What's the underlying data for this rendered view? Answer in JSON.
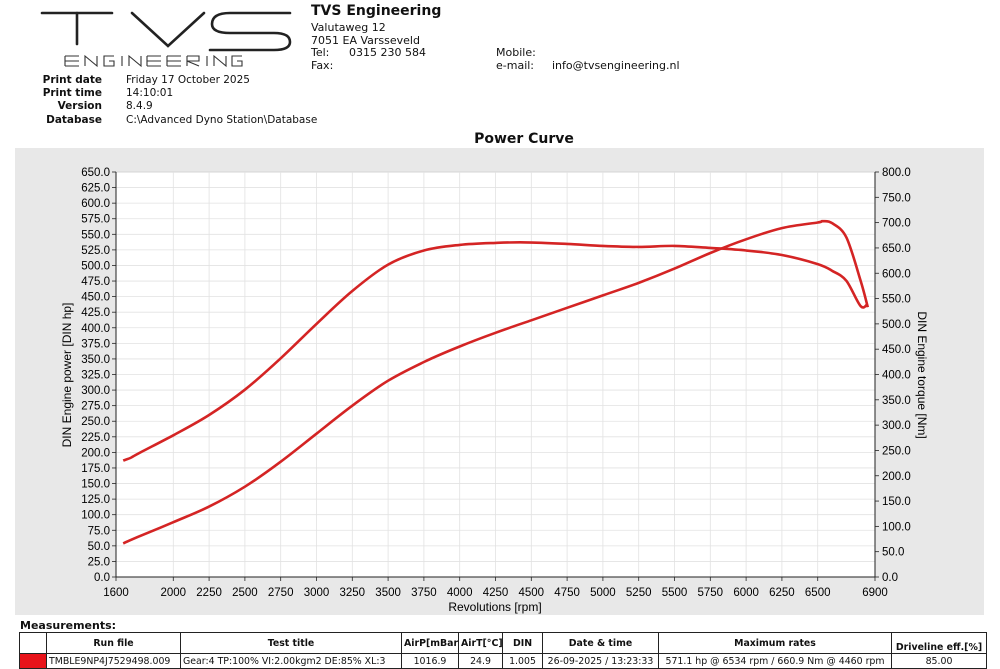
{
  "company": {
    "name": "TVS Engineering",
    "street": "Valutaweg 12",
    "city": "7051 EA Varsseveld",
    "tel_label": "Tel:",
    "tel": "0315 230 584",
    "fax_label": "Fax:",
    "mobile_label": "Mobile:",
    "email_label": "e-mail:",
    "email": "info@tvsengineering.nl",
    "logo_main": "TVS",
    "logo_sub": "ENGINEERING"
  },
  "print_info": {
    "date_label": "Print date",
    "date": "Friday 17 October 2025",
    "time_label": "Print time",
    "time": "14:10:01",
    "version_label": "Version",
    "version": "8.4.9",
    "database_label": "Database",
    "database": "C:\\Advanced Dyno Station\\Database"
  },
  "chart_data": {
    "type": "line",
    "title": "Power Curve",
    "xlabel": "Revolutions [rpm]",
    "ylabel": "DIN Engine power [DIN hp]",
    "y2label": "DIN Engine torque [Nm]",
    "xlim": [
      1600,
      6900
    ],
    "ylim": [
      0,
      650
    ],
    "y2lim": [
      0,
      800
    ],
    "x_ticks": [
      1600,
      2000,
      2250,
      2500,
      2750,
      3000,
      3250,
      3500,
      3750,
      4000,
      4250,
      4500,
      4750,
      5000,
      5250,
      5500,
      5750,
      6000,
      6250,
      6500,
      6900
    ],
    "y_ticks": [
      "0.0",
      "25.0",
      "50.0",
      "75.0",
      "100.0",
      "125.0",
      "150.0",
      "175.0",
      "200.0",
      "225.0",
      "250.0",
      "275.0",
      "300.0",
      "325.0",
      "350.0",
      "375.0",
      "400.0",
      "425.0",
      "450.0",
      "475.0",
      "500.0",
      "525.0",
      "550.0",
      "575.0",
      "600.0",
      "625.0",
      "650.0"
    ],
    "y2_ticks": [
      "0.0",
      "50.0",
      "100.0",
      "150.0",
      "200.0",
      "250.0",
      "300.0",
      "350.0",
      "400.0",
      "450.0",
      "500.0",
      "550.0",
      "600.0",
      "650.0",
      "700.0",
      "750.0",
      "800.0"
    ],
    "grid": true,
    "line_color": "#d42424",
    "series": [
      {
        "axis": "left",
        "x": [
          1650,
          1750,
          2000,
          2250,
          2500,
          2750,
          3000,
          3250,
          3500,
          3750,
          4000,
          4250,
          4500,
          4750,
          5000,
          5250,
          5500,
          5750,
          6000,
          6250,
          6500,
          6534,
          6600,
          6700,
          6800,
          6850
        ],
        "values": [
          54,
          64,
          88,
          113,
          145,
          185,
          230,
          275,
          315,
          345,
          370,
          392,
          412,
          432,
          452,
          472,
          495,
          520,
          542,
          560,
          569,
          571,
          568,
          545,
          475,
          433
        ]
      },
      {
        "axis": "right",
        "x": [
          1650,
          1700,
          1750,
          2000,
          2250,
          2500,
          2750,
          3000,
          3250,
          3500,
          3750,
          4000,
          4250,
          4460,
          4750,
          5000,
          5250,
          5500,
          5750,
          6000,
          6250,
          6500,
          6600,
          6700,
          6800,
          6850
        ],
        "values": [
          230,
          235,
          243,
          280,
          320,
          370,
          432,
          500,
          565,
          617,
          645,
          656,
          660,
          661,
          658,
          654,
          652,
          654,
          650,
          645,
          636,
          618,
          605,
          585,
          535,
          540
        ]
      }
    ]
  },
  "measurements": {
    "label": "Measurements:",
    "headers": {
      "run_file": "Run file",
      "test_title": "Test title",
      "airp": "AirP[mBar]",
      "airt": "AirT[°C]",
      "din": "DIN",
      "datetime": "Date & time",
      "max_rates": "Maximum rates",
      "driveline": "Driveline eff.[%]"
    },
    "row": {
      "color": "#e8131a",
      "run_file": "TMBLE9NP4J7529498.009",
      "test_title": "Gear:4 TP:100% VI:2.00kgm2 DE:85% XL:3",
      "airp": "1016.9",
      "airt": "24.9",
      "din": "1.005",
      "datetime": "26-09-2025 / 13:23:33",
      "max_rates": "571.1 hp @ 6534 rpm / 660.9 Nm @ 4460 rpm",
      "driveline": "85.00"
    }
  }
}
